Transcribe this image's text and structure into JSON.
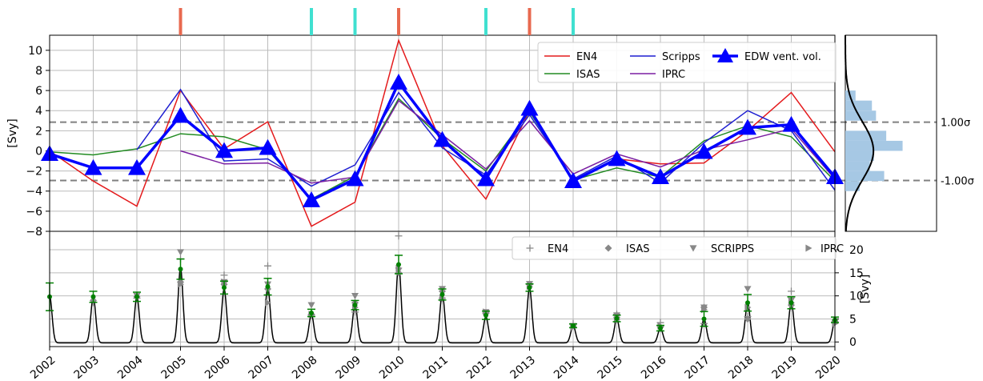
{
  "chart_data": [
    {
      "type": "line",
      "ylabel": "[Svy]",
      "ylim": [
        -8,
        11.5
      ],
      "yticks": [
        "10",
        "8",
        "6",
        "4",
        "2",
        "0",
        "−2",
        "−4",
        "−6",
        "−8"
      ],
      "grid": true,
      "legend_position": "top-right",
      "x": [
        2002,
        2003,
        2004,
        2005,
        2006,
        2007,
        2008,
        2009,
        2010,
        2011,
        2012,
        2013,
        2014,
        2015,
        2016,
        2017,
        2018,
        2019,
        2020
      ],
      "series": [
        {
          "name": "EN4",
          "color": "#e41a1c",
          "values": [
            0.0,
            -3.0,
            -5.5,
            6.0,
            0.2,
            2.9,
            -7.5,
            -5.1,
            11.0,
            0.5,
            -4.8,
            4.0,
            -3.0,
            -0.8,
            -1.3,
            -1.2,
            2.0,
            5.8,
            -0.1
          ]
        },
        {
          "name": "ISAS",
          "color": "#228b22",
          "values": [
            -0.1,
            -0.4,
            0.2,
            1.7,
            1.4,
            0.1,
            -4.8,
            -2.5,
            5.2,
            1.2,
            -2.0,
            3.9,
            -2.9,
            -1.7,
            -2.6,
            1.0,
            2.5,
            1.4,
            -3.0
          ]
        },
        {
          "name": "Scripps",
          "color": "#1f1fd1",
          "values": [
            null,
            null,
            0.1,
            6.1,
            -1.0,
            -0.8,
            -3.5,
            -1.4,
            5.8,
            0.3,
            -2.4,
            3.6,
            -2.8,
            -0.5,
            -3.2,
            0.8,
            4.0,
            2.0,
            -3.9
          ]
        },
        {
          "name": "IPRC",
          "color": "#7b1fa2",
          "values": [
            null,
            null,
            null,
            0.0,
            -1.3,
            -1.2,
            -3.2,
            -2.6,
            5.0,
            1.6,
            -1.8,
            3.0,
            -2.3,
            -0.3,
            -1.6,
            0.1,
            1.1,
            2.2,
            -2.8
          ]
        },
        {
          "name": "EDW vent. vol.",
          "color": "#0000ff",
          "values": [
            -0.3,
            -1.7,
            -1.7,
            3.5,
            0.0,
            0.3,
            -4.9,
            -2.8,
            6.8,
            1.1,
            -2.8,
            4.2,
            -3.0,
            -0.8,
            -2.6,
            -0.1,
            2.3,
            2.6,
            -2.6
          ]
        }
      ],
      "sigma_lines": [
        {
          "value": 2.85,
          "label": "1.00σ"
        },
        {
          "value": -2.95,
          "label": "-1.00σ"
        }
      ],
      "event_markers": [
        {
          "year": 2005,
          "color": "#e8694f"
        },
        {
          "year": 2008,
          "color": "#40e0d0"
        },
        {
          "year": 2009,
          "color": "#40e0d0"
        },
        {
          "year": 2010,
          "color": "#e8694f"
        },
        {
          "year": 2012,
          "color": "#40e0d0"
        },
        {
          "year": 2013,
          "color": "#e8694f"
        },
        {
          "year": 2014,
          "color": "#40e0d0"
        }
      ],
      "histogram": {
        "color": "#a6c8e4",
        "bin_edges": [
          -6,
          -5,
          -4,
          -3,
          -2,
          -1,
          0,
          1,
          2,
          3,
          4,
          5,
          6
        ],
        "density": [
          0,
          0,
          0.07,
          0.19,
          0.12,
          0.14,
          0.28,
          0.2,
          0.0,
          0.15,
          0.13,
          0.05,
          0.0
        ]
      }
    },
    {
      "type": "line",
      "ylabel": "[Svy]",
      "ylim": [
        -1,
        24
      ],
      "yticks": [
        "0",
        "5",
        "10",
        "15",
        "20"
      ],
      "grid": true,
      "legend_position": "top-right",
      "x_range": [
        2002,
        2020
      ],
      "xticks": [
        "2002",
        "2003",
        "2004",
        "2005",
        "2006",
        "2007",
        "2008",
        "2009",
        "2010",
        "2011",
        "2012",
        "2013",
        "2014",
        "2015",
        "2016",
        "2017",
        "2018",
        "2019",
        "2020"
      ],
      "peak_values": [
        10.0,
        9.8,
        9.8,
        16.0,
        11.5,
        12.0,
        6.0,
        8.0,
        17.0,
        10.5,
        5.5,
        11.7,
        3.5,
        5.0,
        3.0,
        5.0,
        8.5,
        8.5,
        4.5
      ],
      "mean_points": [
        9.8,
        9.8,
        9.8,
        15.8,
        11.8,
        12.0,
        6.3,
        8.0,
        16.8,
        10.3,
        5.8,
        11.8,
        3.5,
        5.1,
        3.0,
        5.0,
        8.5,
        8.5,
        4.8
      ],
      "errors": [
        3.0,
        1.2,
        1.0,
        2.2,
        1.4,
        1.8,
        0.8,
        1.0,
        2.0,
        1.2,
        0.9,
        0.8,
        0.4,
        0.7,
        0.6,
        1.6,
        1.8,
        1.3,
        0.6
      ],
      "markers": [
        {
          "name": "EN4",
          "symbol": "+",
          "color": "#888888",
          "values": [
            null,
            8.6,
            9.5,
            18.0,
            14.5,
            16.5,
            5.8,
            6.5,
            23.0,
            9.5,
            6.3,
            12.5,
            4.0,
            6.0,
            4.2,
            4.0,
            5.5,
            11.0,
            4.3
          ]
        },
        {
          "name": "ISAS",
          "symbol": "diamond",
          "color": "#888888",
          "values": [
            null,
            9.0,
            9.8,
            13.0,
            12.5,
            11.5,
            6.0,
            8.5,
            15.0,
            11.0,
            6.2,
            12.5,
            3.5,
            5.3,
            3.2,
            7.5,
            5.0,
            8.0,
            4.5
          ]
        },
        {
          "name": "SCRIPPS",
          "symbol": "triangle-down",
          "color": "#888888",
          "values": [
            null,
            null,
            10.0,
            19.5,
            13.0,
            12.5,
            8.0,
            10.0,
            15.5,
            11.5,
            6.5,
            12.6,
            3.5,
            5.8,
            2.8,
            7.5,
            11.5,
            9.0,
            4.2
          ]
        },
        {
          "name": "IPRC",
          "symbol": "triangle-right",
          "color": "#888888",
          "values": [
            null,
            null,
            null,
            12.5,
            13.0,
            8.5,
            6.0,
            7.5,
            16.0,
            9.5,
            6.5,
            12.0,
            3.2,
            4.8,
            3.5,
            7.0,
            7.5,
            8.5,
            4.0
          ]
        }
      ],
      "mean_color": "#008000",
      "curve_color": "#000000"
    }
  ]
}
